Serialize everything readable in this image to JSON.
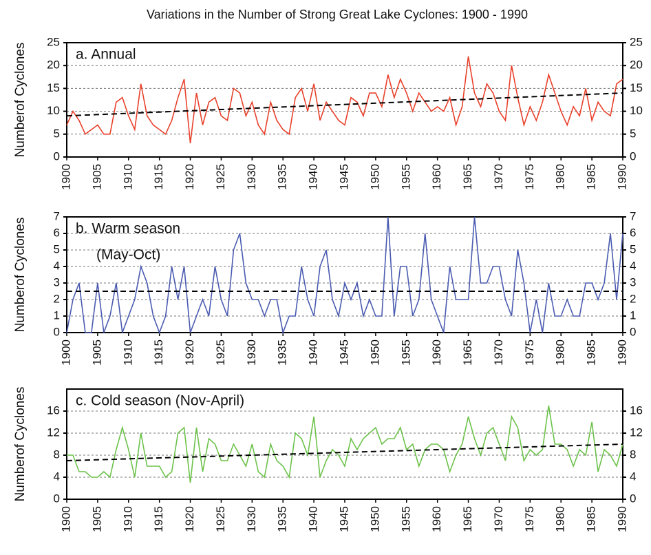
{
  "title": "Variations in the Number of Strong Great Lake Cyclones: 1900 - 1990",
  "chart_data": [
    {
      "type": "line",
      "annotation": [
        "a. Annual"
      ],
      "ylabel": "Numberof Cyclones",
      "x": [
        1900,
        1901,
        1902,
        1903,
        1904,
        1905,
        1906,
        1907,
        1908,
        1909,
        1910,
        1911,
        1912,
        1913,
        1914,
        1915,
        1916,
        1917,
        1918,
        1919,
        1920,
        1921,
        1922,
        1923,
        1924,
        1925,
        1926,
        1927,
        1928,
        1929,
        1930,
        1931,
        1932,
        1933,
        1934,
        1935,
        1936,
        1937,
        1938,
        1939,
        1940,
        1941,
        1942,
        1943,
        1944,
        1945,
        1946,
        1947,
        1948,
        1949,
        1950,
        1951,
        1952,
        1953,
        1954,
        1955,
        1956,
        1957,
        1958,
        1959,
        1960,
        1961,
        1962,
        1963,
        1964,
        1965,
        1966,
        1967,
        1968,
        1969,
        1970,
        1971,
        1972,
        1973,
        1974,
        1975,
        1976,
        1977,
        1978,
        1979,
        1980,
        1981,
        1982,
        1983,
        1984,
        1985,
        1986,
        1987,
        1988,
        1989,
        1990
      ],
      "series": [
        {
          "color": "#e8402a",
          "values": [
            7,
            10,
            8,
            5,
            6,
            7,
            5,
            5,
            12,
            13,
            9,
            6,
            16,
            9,
            7,
            6,
            5,
            8,
            13,
            17,
            3,
            14,
            7,
            12,
            13,
            9,
            8,
            15,
            14,
            9,
            12,
            7,
            5,
            12,
            8,
            6,
            5,
            13,
            15,
            10,
            16,
            8,
            12,
            10,
            8,
            7,
            13,
            12,
            9,
            14,
            14,
            11,
            18,
            13,
            17,
            14,
            10,
            14,
            12,
            10,
            11,
            10,
            13,
            7,
            11,
            22,
            14,
            11,
            16,
            14,
            10,
            8,
            20,
            13,
            7,
            11,
            8,
            12,
            18,
            14,
            10,
            7,
            11,
            9,
            15,
            8,
            12,
            10,
            9,
            16,
            17
          ]
        }
      ],
      "trend": {
        "x": [
          1900,
          1990
        ],
        "values": [
          9,
          14
        ]
      },
      "xlim": [
        1900,
        1990
      ],
      "xticks": [
        1900,
        1905,
        1910,
        1915,
        1920,
        1925,
        1930,
        1935,
        1940,
        1945,
        1950,
        1955,
        1960,
        1965,
        1970,
        1975,
        1980,
        1985,
        1990
      ],
      "ylim": [
        0,
        25
      ],
      "yticks": [
        0,
        5,
        10,
        15,
        20,
        25
      ],
      "grid": true
    },
    {
      "type": "line",
      "annotation": [
        "b. Warm season",
        "(May-Oct)"
      ],
      "ylabel": "Numberof Cyclones",
      "x": [
        1900,
        1901,
        1902,
        1903,
        1904,
        1905,
        1906,
        1907,
        1908,
        1909,
        1910,
        1911,
        1912,
        1913,
        1914,
        1915,
        1916,
        1917,
        1918,
        1919,
        1920,
        1921,
        1922,
        1923,
        1924,
        1925,
        1926,
        1927,
        1928,
        1929,
        1930,
        1931,
        1932,
        1933,
        1934,
        1935,
        1936,
        1937,
        1938,
        1939,
        1940,
        1941,
        1942,
        1943,
        1944,
        1945,
        1946,
        1947,
        1948,
        1949,
        1950,
        1951,
        1952,
        1953,
        1954,
        1955,
        1956,
        1957,
        1958,
        1959,
        1960,
        1961,
        1962,
        1963,
        1964,
        1965,
        1966,
        1967,
        1968,
        1969,
        1970,
        1971,
        1972,
        1973,
        1974,
        1975,
        1976,
        1977,
        1978,
        1979,
        1980,
        1981,
        1982,
        1983,
        1984,
        1985,
        1986,
        1987,
        1988,
        1989,
        1990
      ],
      "series": [
        {
          "color": "#4a5bb0",
          "values": [
            0,
            2,
            3,
            0,
            0,
            3,
            0,
            1,
            3,
            0,
            1,
            2,
            4,
            3,
            1,
            0,
            1,
            4,
            2,
            4,
            0,
            1,
            2,
            1,
            4,
            2,
            1,
            5,
            6,
            3,
            2,
            2,
            1,
            2,
            2,
            0,
            1,
            1,
            4,
            2,
            1,
            4,
            5,
            2,
            1,
            3,
            2,
            3,
            1,
            2,
            1,
            1,
            7,
            1,
            4,
            4,
            1,
            2,
            6,
            2,
            1,
            0,
            4,
            2,
            2,
            2,
            7,
            3,
            3,
            4,
            4,
            2,
            1,
            5,
            3,
            0,
            2,
            0,
            3,
            1,
            1,
            2,
            1,
            1,
            3,
            3,
            2,
            3,
            6,
            2,
            6
          ]
        }
      ],
      "trend": {
        "x": [
          1900,
          1990
        ],
        "values": [
          2.5,
          2.5
        ]
      },
      "xlim": [
        1900,
        1990
      ],
      "xticks": [
        1900,
        1905,
        1910,
        1915,
        1920,
        1925,
        1930,
        1935,
        1940,
        1945,
        1950,
        1955,
        1960,
        1965,
        1970,
        1975,
        1980,
        1985,
        1990
      ],
      "ylim": [
        0,
        7
      ],
      "yticks": [
        0,
        1,
        2,
        3,
        4,
        5,
        6,
        7
      ],
      "grid": true
    },
    {
      "type": "line",
      "annotation": [
        "c. Cold season (Nov-April)"
      ],
      "ylabel": "Numberof Cyclones",
      "x": [
        1900,
        1901,
        1902,
        1903,
        1904,
        1905,
        1906,
        1907,
        1908,
        1909,
        1910,
        1911,
        1912,
        1913,
        1914,
        1915,
        1916,
        1917,
        1918,
        1919,
        1920,
        1921,
        1922,
        1923,
        1924,
        1925,
        1926,
        1927,
        1928,
        1929,
        1930,
        1931,
        1932,
        1933,
        1934,
        1935,
        1936,
        1937,
        1938,
        1939,
        1940,
        1941,
        1942,
        1943,
        1944,
        1945,
        1946,
        1947,
        1948,
        1949,
        1950,
        1951,
        1952,
        1953,
        1954,
        1955,
        1956,
        1957,
        1958,
        1959,
        1960,
        1961,
        1962,
        1963,
        1964,
        1965,
        1966,
        1967,
        1968,
        1969,
        1970,
        1971,
        1972,
        1973,
        1974,
        1975,
        1976,
        1977,
        1978,
        1979,
        1980,
        1981,
        1982,
        1983,
        1984,
        1985,
        1986,
        1987,
        1988,
        1989,
        1990
      ],
      "series": [
        {
          "color": "#6cc24a",
          "values": [
            8,
            8,
            5,
            5,
            4,
            4,
            5,
            4,
            9,
            13,
            9,
            4,
            12,
            6,
            6,
            6,
            4,
            5,
            12,
            13,
            3,
            13,
            5,
            11,
            10,
            7,
            7,
            10,
            8,
            6,
            10,
            5,
            4,
            10,
            7,
            6,
            4,
            12,
            11,
            8,
            15,
            4,
            7,
            9,
            8,
            6,
            11,
            9,
            11,
            12,
            13,
            10,
            11,
            11,
            13,
            9,
            10,
            6,
            9,
            10,
            10,
            9,
            5,
            8,
            10,
            15,
            11,
            8,
            12,
            13,
            10,
            7,
            15,
            13,
            7,
            9,
            8,
            9,
            17,
            10,
            10,
            9,
            6,
            9,
            8,
            14,
            5,
            9,
            8,
            6,
            10
          ]
        }
      ],
      "trend": {
        "x": [
          1900,
          1990
        ],
        "values": [
          7,
          10
        ]
      },
      "xlim": [
        1900,
        1990
      ],
      "xticks": [
        1900,
        1905,
        1910,
        1915,
        1920,
        1925,
        1930,
        1935,
        1940,
        1945,
        1950,
        1955,
        1960,
        1965,
        1970,
        1975,
        1980,
        1985,
        1990
      ],
      "ylim": [
        0,
        20
      ],
      "yticks": [
        0,
        4,
        8,
        12,
        16
      ],
      "grid": true
    }
  ]
}
